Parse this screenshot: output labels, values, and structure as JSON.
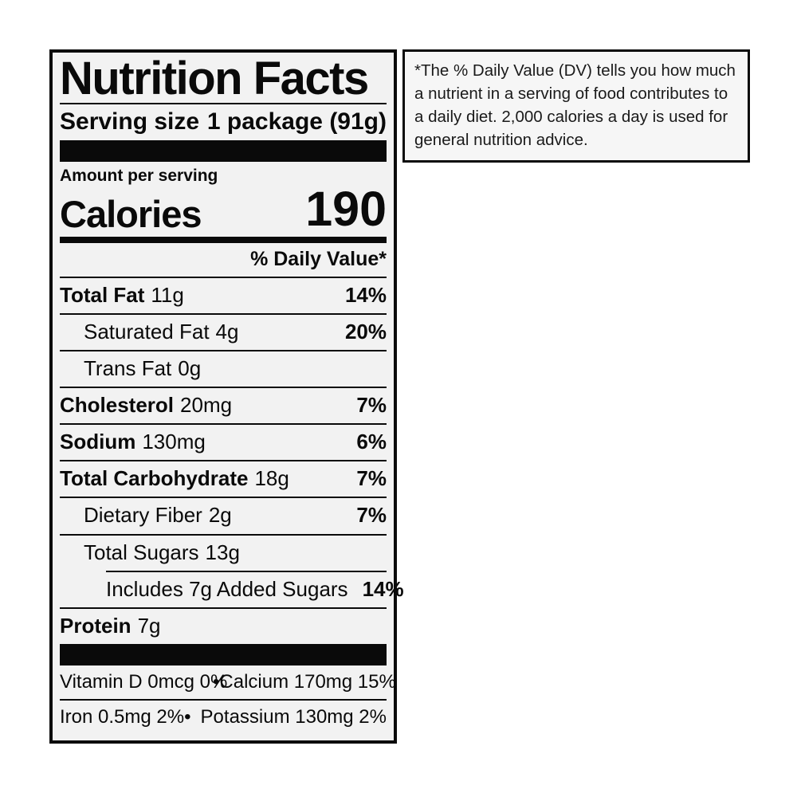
{
  "label": {
    "title": "Nutrition Facts",
    "serving_size_label": "Serving size",
    "serving_size_value": "1 package (91g)",
    "amount_per_serving": "Amount per serving",
    "calories_label": "Calories",
    "calories_value": "190",
    "daily_value_header": "% Daily Value*",
    "nutrients": [
      {
        "name": "Total Fat",
        "amount": "11g",
        "dv": "14%"
      },
      {
        "name": "Saturated Fat",
        "amount": "4g",
        "dv": "20%"
      },
      {
        "name": "Trans Fat",
        "amount": "0g",
        "dv": ""
      },
      {
        "name": "Cholesterol",
        "amount": "20mg",
        "dv": "7%"
      },
      {
        "name": "Sodium",
        "amount": "130mg",
        "dv": "6%"
      },
      {
        "name": "Total Carbohydrate",
        "amount": "18g",
        "dv": "7%"
      },
      {
        "name": "Dietary Fiber",
        "amount": "2g",
        "dv": "7%"
      },
      {
        "name": "Total Sugars",
        "amount": "13g",
        "dv": ""
      },
      {
        "name": "Includes 7g Added Sugars",
        "amount": "",
        "dv": "14%"
      },
      {
        "name": "Protein",
        "amount": "7g",
        "dv": ""
      }
    ],
    "micronutrients": {
      "bullet": "•",
      "row1_left": "Vitamin D 0mcg 0%",
      "row1_right": "Calcium 170mg 15%",
      "row2_left": "Iron 0.5mg 2%",
      "row2_right": "Potassium 130mg 2%"
    }
  },
  "footnote": {
    "text": "*The % Daily Value (DV) tells you how much a nutrient in a serving of food contributes to a daily diet. 2,000 calories a day is used for general nutrition advice."
  },
  "colors": {
    "label_background": "#f2f2f2",
    "border_and_text": "#0a0a0a",
    "page_background": "#ffffff"
  }
}
